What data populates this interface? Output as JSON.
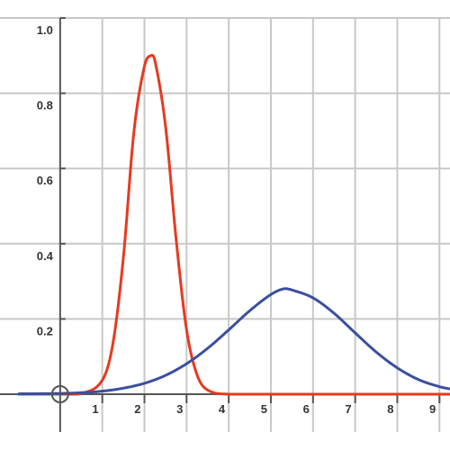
{
  "chart_data": {
    "type": "line",
    "title": "",
    "xlabel": "",
    "ylabel": "",
    "xlim": [
      -1,
      9.25
    ],
    "ylim": [
      0,
      1.0
    ],
    "grid": true,
    "x_ticks": [
      1,
      2,
      3,
      4,
      5,
      6,
      7,
      8,
      9
    ],
    "x_tick_labels": [
      "1",
      "2",
      "3",
      "4",
      "5",
      "6",
      "7",
      "8",
      "9"
    ],
    "y_ticks": [
      0.2,
      0.4,
      0.6,
      0.8,
      1.0
    ],
    "y_tick_labels": [
      "0.2",
      "0.4",
      "0.6",
      "0.8",
      "1.0"
    ],
    "series": [
      {
        "color": "#e8391f",
        "x": [
          -1,
          0,
          0.5,
          1,
          1.25,
          1.5,
          1.75,
          2,
          2.15,
          2.25,
          2.5,
          2.75,
          3,
          3.25,
          3.5,
          4,
          5,
          6,
          7,
          8,
          9,
          9.25
        ],
        "y": [
          0,
          0,
          0.002,
          0.037,
          0.133,
          0.363,
          0.697,
          0.872,
          0.9,
          0.886,
          0.713,
          0.414,
          0.171,
          0.051,
          0.011,
          0,
          0,
          0,
          0,
          0,
          0,
          0
        ]
      },
      {
        "color": "#3a4f9e",
        "x": [
          -1,
          0,
          0.5,
          1,
          1.5,
          2,
          2.5,
          3,
          3.5,
          4,
          4.5,
          5,
          5.3,
          5.5,
          6,
          6.5,
          7,
          7.5,
          8,
          8.5,
          9,
          9.25
        ],
        "y": [
          0.001,
          0.002,
          0.004,
          0.008,
          0.016,
          0.029,
          0.05,
          0.081,
          0.122,
          0.171,
          0.222,
          0.265,
          0.28,
          0.277,
          0.256,
          0.215,
          0.163,
          0.112,
          0.07,
          0.039,
          0.02,
          0.014
        ]
      }
    ],
    "origin_marker": {
      "x": 0,
      "y": 0
    },
    "colors": {
      "grid": "#c8c8c8",
      "axis": "#555555",
      "tick_text": "#333333",
      "marker": "#555555"
    }
  }
}
